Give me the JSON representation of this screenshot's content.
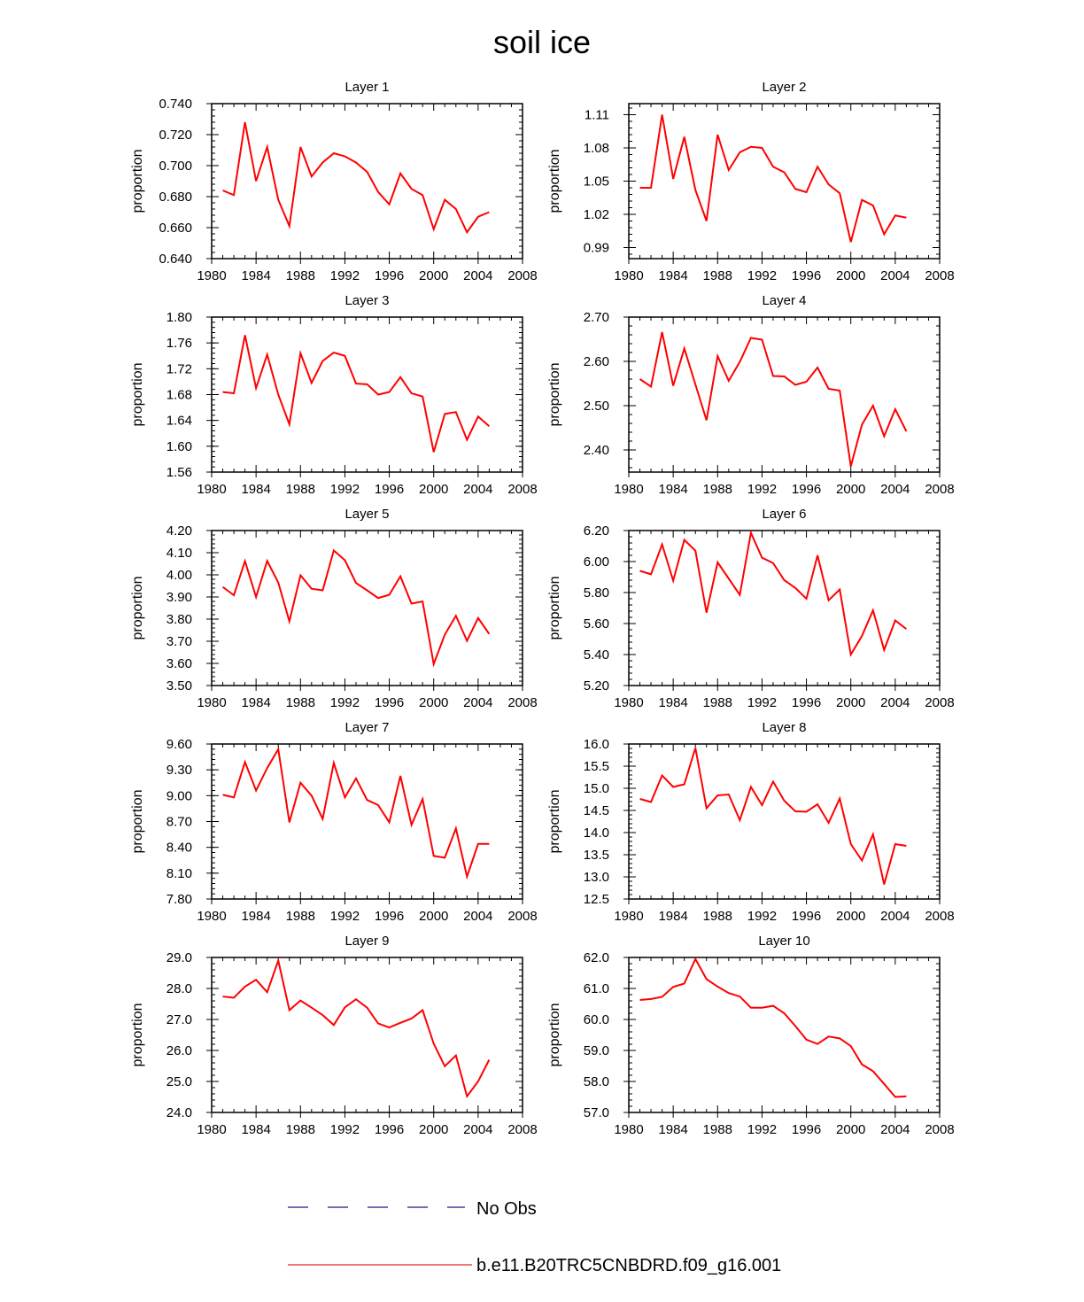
{
  "title": "soil ice",
  "legend": [
    {
      "label": "No Obs",
      "color": "#1a1a7a",
      "style": "dashed"
    },
    {
      "label": "b.e11.B20TRC5CNBDRD.f09_g16.001",
      "color": "#e8202a",
      "style": "solid"
    }
  ],
  "series_color": "#ff0000",
  "chart_data": [
    {
      "type": "line",
      "title": "Layer 1",
      "ylabel": "proportion",
      "xlim": [
        1980,
        2008
      ],
      "xticks": [
        1980,
        1984,
        1988,
        1992,
        1996,
        2000,
        2004,
        2008
      ],
      "xtick_labels": [
        "1980",
        "1984",
        "1988",
        "1992",
        "1996",
        "2000",
        "2004",
        "2008"
      ],
      "ylim": [
        0.64,
        0.74
      ],
      "yticks": [
        0.64,
        0.66,
        0.68,
        0.7,
        0.72,
        0.74
      ],
      "ytick_labels": [
        "0.640",
        "0.660",
        "0.680",
        "0.700",
        "0.720",
        "0.740"
      ],
      "x": [
        1981,
        1982,
        1983,
        1984,
        1985,
        1986,
        1987,
        1988,
        1989,
        1990,
        1991,
        1992,
        1993,
        1994,
        1995,
        1996,
        1997,
        1998,
        1999,
        2000,
        2001,
        2002,
        2003,
        2004,
        2005
      ],
      "y": [
        0.684,
        0.681,
        0.728,
        0.69,
        0.712,
        0.678,
        0.661,
        0.712,
        0.693,
        0.702,
        0.708,
        0.706,
        0.702,
        0.696,
        0.683,
        0.675,
        0.695,
        0.685,
        0.681,
        0.659,
        0.678,
        0.672,
        0.657,
        0.667,
        0.67
      ]
    },
    {
      "type": "line",
      "title": "Layer 2",
      "ylabel": "proportion",
      "xlim": [
        1980,
        2008
      ],
      "xticks": [
        1980,
        1984,
        1988,
        1992,
        1996,
        2000,
        2004,
        2008
      ],
      "xtick_labels": [
        "1980",
        "1984",
        "1988",
        "1992",
        "1996",
        "2000",
        "2004",
        "2008"
      ],
      "ylim": [
        0.98,
        1.12
      ],
      "yticks": [
        0.99,
        1.02,
        1.05,
        1.08,
        1.11
      ],
      "ytick_labels": [
        "0.99",
        "1.02",
        "1.05",
        "1.08",
        "1.11"
      ],
      "x": [
        1981,
        1982,
        1983,
        1984,
        1985,
        1986,
        1987,
        1988,
        1989,
        1990,
        1991,
        1992,
        1993,
        1994,
        1995,
        1996,
        1997,
        1998,
        1999,
        2000,
        2001,
        2002,
        2003,
        2004,
        2005
      ],
      "y": [
        1.044,
        1.044,
        1.11,
        1.052,
        1.09,
        1.042,
        1.014,
        1.092,
        1.06,
        1.076,
        1.081,
        1.08,
        1.063,
        1.058,
        1.043,
        1.04,
        1.063,
        1.047,
        1.039,
        0.995,
        1.033,
        1.028,
        1.002,
        1.019,
        1.017
      ]
    },
    {
      "type": "line",
      "title": "Layer 3",
      "ylabel": "proportion",
      "xlim": [
        1980,
        2008
      ],
      "xticks": [
        1980,
        1984,
        1988,
        1992,
        1996,
        2000,
        2004,
        2008
      ],
      "xtick_labels": [
        "1980",
        "1984",
        "1988",
        "1992",
        "1996",
        "2000",
        "2004",
        "2008"
      ],
      "ylim": [
        1.56,
        1.8
      ],
      "yticks": [
        1.56,
        1.6,
        1.64,
        1.68,
        1.72,
        1.76,
        1.8
      ],
      "ytick_labels": [
        "1.56",
        "1.60",
        "1.64",
        "1.68",
        "1.72",
        "1.76",
        "1.80"
      ],
      "x": [
        1981,
        1982,
        1983,
        1984,
        1985,
        1986,
        1987,
        1988,
        1989,
        1990,
        1991,
        1992,
        1993,
        1994,
        1995,
        1996,
        1997,
        1998,
        1999,
        2000,
        2001,
        2002,
        2003,
        2004,
        2005
      ],
      "y": [
        1.684,
        1.682,
        1.772,
        1.69,
        1.742,
        1.68,
        1.634,
        1.744,
        1.698,
        1.732,
        1.745,
        1.74,
        1.697,
        1.696,
        1.68,
        1.684,
        1.707,
        1.682,
        1.677,
        1.591,
        1.65,
        1.653,
        1.61,
        1.646,
        1.631
      ]
    },
    {
      "type": "line",
      "title": "Layer 4",
      "ylabel": "proportion",
      "xlim": [
        1980,
        2008
      ],
      "xticks": [
        1980,
        1984,
        1988,
        1992,
        1996,
        2000,
        2004,
        2008
      ],
      "xtick_labels": [
        "1980",
        "1984",
        "1988",
        "1992",
        "1996",
        "2000",
        "2004",
        "2008"
      ],
      "ylim": [
        2.35,
        2.7
      ],
      "yticks": [
        2.4,
        2.5,
        2.6,
        2.7
      ],
      "ytick_labels": [
        "2.40",
        "2.50",
        "2.60",
        "2.70"
      ],
      "x": [
        1981,
        1982,
        1983,
        1984,
        1985,
        1986,
        1987,
        1988,
        1989,
        1990,
        1991,
        1992,
        1993,
        1994,
        1995,
        1996,
        1997,
        1998,
        1999,
        2000,
        2001,
        2002,
        2003,
        2004,
        2005
      ],
      "y": [
        2.56,
        2.543,
        2.666,
        2.545,
        2.629,
        2.548,
        2.467,
        2.612,
        2.556,
        2.599,
        2.653,
        2.649,
        2.567,
        2.566,
        2.547,
        2.554,
        2.586,
        2.538,
        2.534,
        2.363,
        2.457,
        2.5,
        2.431,
        2.492,
        2.442
      ]
    },
    {
      "type": "line",
      "title": "Layer 5",
      "ylabel": "proportion",
      "xlim": [
        1980,
        2008
      ],
      "xticks": [
        1980,
        1984,
        1988,
        1992,
        1996,
        2000,
        2004,
        2008
      ],
      "xtick_labels": [
        "1980",
        "1984",
        "1988",
        "1992",
        "1996",
        "2000",
        "2004",
        "2008"
      ],
      "ylim": [
        3.5,
        4.2
      ],
      "yticks": [
        3.5,
        3.6,
        3.7,
        3.8,
        3.9,
        4.0,
        4.1,
        4.2
      ],
      "ytick_labels": [
        "3.50",
        "3.60",
        "3.70",
        "3.80",
        "3.90",
        "4.00",
        "4.10",
        "4.20"
      ],
      "x": [
        1981,
        1982,
        1983,
        1984,
        1985,
        1986,
        1987,
        1988,
        1989,
        1990,
        1991,
        1992,
        1993,
        1994,
        1995,
        1996,
        1997,
        1998,
        1999,
        2000,
        2001,
        2002,
        2003,
        2004,
        2005
      ],
      "y": [
        3.945,
        3.908,
        4.062,
        3.9,
        4.063,
        3.965,
        3.79,
        3.998,
        3.937,
        3.93,
        4.11,
        4.066,
        3.963,
        3.93,
        3.895,
        3.91,
        3.993,
        3.87,
        3.88,
        3.597,
        3.73,
        3.815,
        3.702,
        3.805,
        3.733
      ]
    },
    {
      "type": "line",
      "title": "Layer 6",
      "ylabel": "proportion",
      "xlim": [
        1980,
        2008
      ],
      "xticks": [
        1980,
        1984,
        1988,
        1992,
        1996,
        2000,
        2004,
        2008
      ],
      "xtick_labels": [
        "1980",
        "1984",
        "1988",
        "1992",
        "1996",
        "2000",
        "2004",
        "2008"
      ],
      "ylim": [
        5.2,
        6.2
      ],
      "yticks": [
        5.2,
        5.4,
        5.6,
        5.8,
        6.0,
        6.2
      ],
      "ytick_labels": [
        "5.20",
        "5.40",
        "5.60",
        "5.80",
        "6.00",
        "6.20"
      ],
      "x": [
        1981,
        1982,
        1983,
        1984,
        1985,
        1986,
        1987,
        1988,
        1989,
        1990,
        1991,
        1992,
        1993,
        1994,
        1995,
        1996,
        1997,
        1998,
        1999,
        2000,
        2001,
        2002,
        2003,
        2004,
        2005
      ],
      "y": [
        5.94,
        5.918,
        6.11,
        5.877,
        6.14,
        6.07,
        5.67,
        5.995,
        5.89,
        5.785,
        6.185,
        6.025,
        5.99,
        5.88,
        5.83,
        5.76,
        6.04,
        5.75,
        5.82,
        5.4,
        5.52,
        5.685,
        5.43,
        5.62,
        5.565
      ]
    },
    {
      "type": "line",
      "title": "Layer 7",
      "ylabel": "proportion",
      "xlim": [
        1980,
        2008
      ],
      "xticks": [
        1980,
        1984,
        1988,
        1992,
        1996,
        2000,
        2004,
        2008
      ],
      "xtick_labels": [
        "1980",
        "1984",
        "1988",
        "1992",
        "1996",
        "2000",
        "2004",
        "2008"
      ],
      "ylim": [
        7.8,
        9.6
      ],
      "yticks": [
        7.8,
        8.1,
        8.4,
        8.7,
        9.0,
        9.3,
        9.6
      ],
      "ytick_labels": [
        "7.80",
        "8.10",
        "8.40",
        "8.70",
        "9.00",
        "9.30",
        "9.60"
      ],
      "x": [
        1981,
        1982,
        1983,
        1984,
        1985,
        1986,
        1987,
        1988,
        1989,
        1990,
        1991,
        1992,
        1993,
        1994,
        1995,
        1996,
        1997,
        1998,
        1999,
        2000,
        2001,
        2002,
        2003,
        2004,
        2005
      ],
      "y": [
        9.01,
        8.98,
        9.39,
        9.06,
        9.32,
        9.54,
        8.69,
        9.15,
        9.0,
        8.73,
        9.38,
        8.98,
        9.2,
        8.95,
        8.89,
        8.69,
        9.23,
        8.66,
        8.96,
        8.3,
        8.28,
        8.62,
        8.06,
        8.44,
        8.44
      ]
    },
    {
      "type": "line",
      "title": "Layer 8",
      "ylabel": "proportion",
      "xlim": [
        1980,
        2008
      ],
      "xticks": [
        1980,
        1984,
        1988,
        1992,
        1996,
        2000,
        2004,
        2008
      ],
      "xtick_labels": [
        "1980",
        "1984",
        "1988",
        "1992",
        "1996",
        "2000",
        "2004",
        "2008"
      ],
      "ylim": [
        12.5,
        16.0
      ],
      "yticks": [
        12.5,
        13.0,
        13.5,
        14.0,
        14.5,
        15.0,
        15.5,
        16.0
      ],
      "ytick_labels": [
        "12.5",
        "13.0",
        "13.5",
        "14.0",
        "14.5",
        "15.0",
        "15.5",
        "16.0"
      ],
      "x": [
        1981,
        1982,
        1983,
        1984,
        1985,
        1986,
        1987,
        1988,
        1989,
        1990,
        1991,
        1992,
        1993,
        1994,
        1995,
        1996,
        1997,
        1998,
        1999,
        2000,
        2001,
        2002,
        2003,
        2004,
        2005
      ],
      "y": [
        14.76,
        14.69,
        15.29,
        15.03,
        15.09,
        15.91,
        14.55,
        14.84,
        14.86,
        14.28,
        15.03,
        14.62,
        15.15,
        14.72,
        14.48,
        14.47,
        14.64,
        14.22,
        14.77,
        13.74,
        13.37,
        13.96,
        12.83,
        13.74,
        13.7
      ]
    },
    {
      "type": "line",
      "title": "Layer 9",
      "ylabel": "proportion",
      "xlim": [
        1980,
        2008
      ],
      "xticks": [
        1980,
        1984,
        1988,
        1992,
        1996,
        2000,
        2004,
        2008
      ],
      "xtick_labels": [
        "1980",
        "1984",
        "1988",
        "1992",
        "1996",
        "2000",
        "2004",
        "2008"
      ],
      "ylim": [
        24.0,
        29.0
      ],
      "yticks": [
        24.0,
        25.0,
        26.0,
        27.0,
        28.0,
        29.0
      ],
      "ytick_labels": [
        "24.0",
        "25.0",
        "26.0",
        "27.0",
        "28.0",
        "29.0"
      ],
      "x": [
        1981,
        1982,
        1983,
        1984,
        1985,
        1986,
        1987,
        1988,
        1989,
        1990,
        1991,
        1992,
        1993,
        1994,
        1995,
        1996,
        1997,
        1998,
        1999,
        2000,
        2001,
        2002,
        2003,
        2004,
        2005
      ],
      "y": [
        27.74,
        27.7,
        28.06,
        28.28,
        27.88,
        28.9,
        27.3,
        27.61,
        27.38,
        27.14,
        26.82,
        27.39,
        27.65,
        27.38,
        26.87,
        26.74,
        26.89,
        27.03,
        27.3,
        26.22,
        25.49,
        25.84,
        24.52,
        25.0,
        25.7
      ]
    },
    {
      "type": "line",
      "title": "Layer 10",
      "ylabel": "proportion",
      "xlim": [
        1980,
        2008
      ],
      "xticks": [
        1980,
        1984,
        1988,
        1992,
        1996,
        2000,
        2004,
        2008
      ],
      "xtick_labels": [
        "1980",
        "1984",
        "1988",
        "1992",
        "1996",
        "2000",
        "2004",
        "2008"
      ],
      "ylim": [
        57.0,
        62.0
      ],
      "yticks": [
        57.0,
        58.0,
        59.0,
        60.0,
        61.0,
        62.0
      ],
      "ytick_labels": [
        "57.0",
        "58.0",
        "59.0",
        "60.0",
        "61.0",
        "62.0"
      ],
      "x": [
        1981,
        1982,
        1983,
        1984,
        1985,
        1986,
        1987,
        1988,
        1989,
        1990,
        1991,
        1992,
        1993,
        1994,
        1995,
        1996,
        1997,
        1998,
        1999,
        2000,
        2001,
        2002,
        2003,
        2004,
        2005
      ],
      "y": [
        60.63,
        60.66,
        60.73,
        61.05,
        61.16,
        61.95,
        61.3,
        61.06,
        60.85,
        60.74,
        60.38,
        60.38,
        60.44,
        60.2,
        59.79,
        59.35,
        59.21,
        59.45,
        59.39,
        59.14,
        58.55,
        58.33,
        57.92,
        57.5,
        57.52
      ]
    }
  ]
}
